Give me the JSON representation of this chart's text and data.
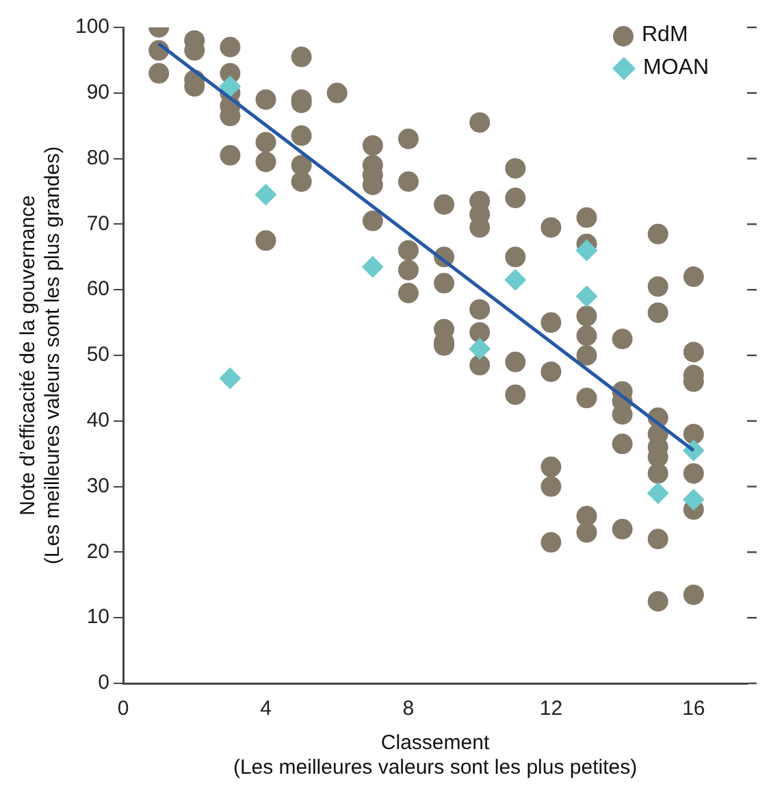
{
  "chart_data": {
    "type": "scatter",
    "xlabel": "Classement\n(Les meilleures valeurs sont les plus petites)",
    "ylabel": "Note d’efficacité de la gouvernance\n(Les meilleures valeurs sont les plus grandes)",
    "xlim": [
      0,
      17.5
    ],
    "xticks": [
      0,
      4,
      8,
      12,
      16
    ],
    "ylim": [
      0,
      100
    ],
    "yticks": [
      0,
      10,
      20,
      30,
      40,
      50,
      60,
      70,
      80,
      90,
      100
    ],
    "grid": false,
    "legend": "top right",
    "series": [
      {
        "name": "RdM",
        "color": "#857a68",
        "marker": "circle",
        "x": [
          1,
          1,
          1,
          2,
          2,
          2,
          2,
          3,
          3,
          3,
          3,
          3,
          3,
          4,
          4,
          4,
          4,
          5,
          5,
          5,
          5,
          5,
          5,
          6,
          7,
          7,
          7,
          7,
          7,
          8,
          8,
          8,
          8,
          8,
          9,
          9,
          9,
          9,
          9,
          9,
          10,
          10,
          10,
          10,
          10,
          10,
          10,
          11,
          11,
          11,
          11,
          11,
          12,
          12,
          12,
          12,
          12,
          12,
          13,
          13,
          13,
          13,
          13,
          13,
          13,
          13,
          14,
          14,
          14,
          14,
          14,
          14,
          15,
          15,
          15,
          15,
          15,
          15,
          15,
          15,
          15,
          15,
          16,
          16,
          16,
          16,
          16,
          16,
          16,
          16
        ],
        "values": [
          100,
          96.5,
          93,
          98,
          96.5,
          92,
          91,
          97,
          93,
          90,
          88,
          86.5,
          80.5,
          89,
          82.5,
          79.5,
          67.5,
          95.5,
          89,
          88.5,
          83.5,
          79,
          76.5,
          90,
          82,
          79,
          77.5,
          76,
          70.5,
          83,
          76.5,
          66,
          63,
          59.5,
          73,
          65,
          61,
          54,
          52,
          51.5,
          85.5,
          73.5,
          71.5,
          69.5,
          57,
          53.5,
          48.5,
          78.5,
          74,
          65,
          49,
          44,
          69.5,
          55,
          47.5,
          33,
          30,
          21.5,
          71,
          67,
          56,
          53,
          50,
          43.5,
          25.5,
          23,
          52.5,
          44.5,
          43,
          41,
          36.5,
          23.5,
          68.5,
          60.5,
          56.5,
          40.5,
          38,
          36,
          34.5,
          32,
          22,
          12.5,
          62,
          50.5,
          47,
          46,
          38,
          32,
          26.5,
          13.5
        ]
      },
      {
        "name": "MOAN",
        "color": "#6ccbcc",
        "marker": "diamond",
        "x": [
          3,
          3,
          4,
          7,
          10,
          11,
          13,
          13,
          15,
          16,
          16
        ],
        "values": [
          91,
          46.5,
          74.5,
          63.5,
          51,
          61.5,
          66,
          59,
          29,
          35.5,
          28
        ]
      },
      {
        "type": "line",
        "color": "#2458a8",
        "marker": "none",
        "x": [
          1,
          16
        ],
        "values": [
          97.5,
          35.5
        ]
      }
    ]
  }
}
